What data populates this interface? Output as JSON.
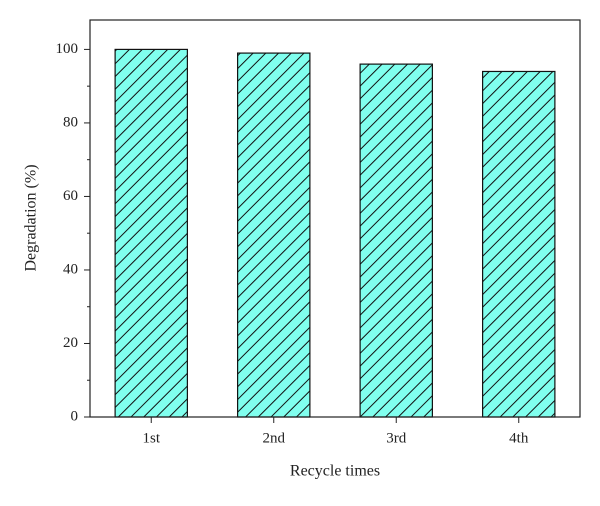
{
  "chart_data": {
    "type": "bar",
    "x_label": "Recycle times",
    "y_label": "Degradation (%)",
    "categories": [
      "1st",
      "2nd",
      "3rd",
      "4th"
    ],
    "values": [
      100,
      99,
      96,
      94
    ],
    "color": "#80ffee",
    "hatch": true,
    "ylim": [
      0,
      108
    ],
    "yticks": [
      0,
      20,
      40,
      60,
      80,
      100
    ],
    "minor_yticks": [
      10,
      30,
      50,
      70,
      90
    ]
  }
}
